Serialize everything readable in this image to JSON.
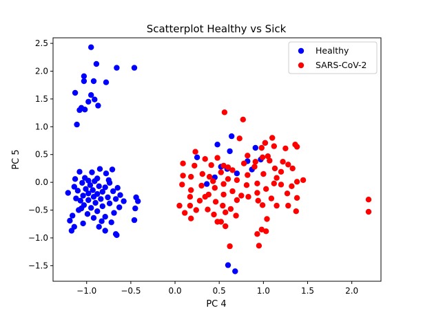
{
  "chart_data": {
    "type": "scatter",
    "title": "Scatterplot Healthy vs Sick",
    "xlabel": "PC 4",
    "ylabel": "PC 5",
    "xlim": [
      -1.38,
      2.33
    ],
    "ylim": [
      -1.78,
      2.6
    ],
    "xticks": [
      -1.0,
      -0.5,
      0.0,
      0.5,
      1.0,
      1.5,
      2.0
    ],
    "xtick_labels": [
      "−1.0",
      "−0.5",
      "0.0",
      "0.5",
      "1.0",
      "1.5",
      "2.0"
    ],
    "yticks": [
      -1.5,
      -1.0,
      -0.5,
      0.0,
      0.5,
      1.0,
      1.5,
      2.0,
      2.5
    ],
    "ytick_labels": [
      "−1.5",
      "−1.0",
      "−0.5",
      "0.0",
      "0.5",
      "1.0",
      "1.5",
      "2.0",
      "2.5"
    ],
    "legend_position": "top-right",
    "series": [
      {
        "name": "Healthy",
        "color": "#0000ff",
        "points": [
          [
            -0.95,
            2.43
          ],
          [
            -0.89,
            2.13
          ],
          [
            -0.66,
            2.06
          ],
          [
            -0.46,
            2.06
          ],
          [
            -1.03,
            1.91
          ],
          [
            -0.92,
            1.82
          ],
          [
            -1.03,
            1.82
          ],
          [
            -0.78,
            1.8
          ],
          [
            -1.13,
            1.61
          ],
          [
            -0.95,
            1.57
          ],
          [
            -0.91,
            1.49
          ],
          [
            -0.98,
            1.45
          ],
          [
            -0.87,
            1.38
          ],
          [
            -1.06,
            1.34
          ],
          [
            -1.08,
            1.3
          ],
          [
            -1.02,
            1.31
          ],
          [
            -1.11,
            1.04
          ],
          [
            -0.85,
            0.24
          ],
          [
            -0.71,
            0.23
          ],
          [
            -1.08,
            0.19
          ],
          [
            -0.94,
            0.18
          ],
          [
            -0.78,
            0.16
          ],
          [
            -1.13,
            0.06
          ],
          [
            -1.02,
            0.08
          ],
          [
            -0.88,
            0.07
          ],
          [
            -0.98,
            0.03
          ],
          [
            -0.75,
            0.04
          ],
          [
            -0.91,
            0.02
          ],
          [
            -0.74,
            -0.01
          ],
          [
            -1.05,
            -0.01
          ],
          [
            -0.96,
            -0.05
          ],
          [
            -1.14,
            -0.08
          ],
          [
            -0.86,
            -0.07
          ],
          [
            -0.79,
            -0.09
          ],
          [
            -0.65,
            -0.1
          ],
          [
            -1.01,
            -0.12
          ],
          [
            -0.93,
            -0.14
          ],
          [
            -1.1,
            -0.15
          ],
          [
            -0.7,
            -0.16
          ],
          [
            -0.82,
            -0.17
          ],
          [
            -1.21,
            -0.19
          ],
          [
            -0.98,
            -0.2
          ],
          [
            -0.88,
            -0.21
          ],
          [
            -0.62,
            -0.23
          ],
          [
            -1.04,
            -0.24
          ],
          [
            -0.92,
            -0.26
          ],
          [
            -0.76,
            -0.27
          ],
          [
            -0.44,
            -0.27
          ],
          [
            -1.12,
            -0.29
          ],
          [
            -0.84,
            -0.3
          ],
          [
            -0.67,
            -0.3
          ],
          [
            -0.98,
            -0.32
          ],
          [
            -1.07,
            -0.33
          ],
          [
            -0.58,
            -0.34
          ],
          [
            -0.42,
            -0.34
          ],
          [
            -0.9,
            -0.37
          ],
          [
            -0.74,
            -0.38
          ],
          [
            -1.03,
            -0.41
          ],
          [
            -0.82,
            -0.43
          ],
          [
            -0.63,
            -0.45
          ],
          [
            -0.95,
            -0.46
          ],
          [
            -1.06,
            -0.47
          ],
          [
            -0.45,
            -0.47
          ],
          [
            -1.09,
            -0.5
          ],
          [
            -0.88,
            -0.52
          ],
          [
            -0.69,
            -0.55
          ],
          [
            -0.99,
            -0.57
          ],
          [
            -1.16,
            -0.6
          ],
          [
            -0.79,
            -0.62
          ],
          [
            -0.92,
            -0.64
          ],
          [
            -0.46,
            -0.68
          ],
          [
            -1.19,
            -0.69
          ],
          [
            -0.83,
            -0.7
          ],
          [
            -0.72,
            -0.72
          ],
          [
            -1.04,
            -0.74
          ],
          [
            -0.86,
            -0.8
          ],
          [
            -1.14,
            -0.8
          ],
          [
            -0.79,
            -0.87
          ],
          [
            -1.17,
            -0.87
          ],
          [
            -0.67,
            -0.93
          ],
          [
            -0.66,
            -0.95
          ],
          [
            0.25,
            0.45
          ],
          [
            0.48,
            0.68
          ],
          [
            0.64,
            0.83
          ],
          [
            0.91,
            0.62
          ],
          [
            0.62,
            0.56
          ],
          [
            0.52,
            0.28
          ],
          [
            0.59,
            0.24
          ],
          [
            0.82,
            0.38
          ],
          [
            0.87,
            0.23
          ],
          [
            0.97,
            0.41
          ],
          [
            1.02,
            0.71
          ],
          [
            0.36,
            -0.03
          ],
          [
            0.45,
            0.09
          ],
          [
            0.7,
            0.16
          ],
          [
            0.6,
            -1.49
          ],
          [
            0.68,
            -1.6
          ]
        ]
      },
      {
        "name": "SARS-CoV-2",
        "color": "#ff0000",
        "points": [
          [
            0.56,
            1.26
          ],
          [
            0.77,
            1.13
          ],
          [
            0.73,
            0.79
          ],
          [
            1.1,
            0.8
          ],
          [
            0.98,
            0.62
          ],
          [
            1.02,
            0.71
          ],
          [
            1.12,
            0.65
          ],
          [
            1.25,
            0.61
          ],
          [
            1.36,
            0.68
          ],
          [
            1.38,
            0.64
          ],
          [
            0.23,
            0.55
          ],
          [
            0.82,
            0.48
          ],
          [
            0.99,
            0.45
          ],
          [
            1.05,
            0.47
          ],
          [
            0.34,
            0.42
          ],
          [
            0.48,
            0.44
          ],
          [
            0.78,
            0.34
          ],
          [
            0.91,
            0.37
          ],
          [
            1.07,
            0.39
          ],
          [
            1.22,
            0.37
          ],
          [
            0.55,
            0.3
          ],
          [
            0.9,
            0.28
          ],
          [
            1.28,
            0.32
          ],
          [
            0.09,
            0.34
          ],
          [
            0.22,
            0.3
          ],
          [
            0.41,
            0.31
          ],
          [
            0.6,
            0.27
          ],
          [
            1.13,
            0.25
          ],
          [
            1.33,
            0.25
          ],
          [
            0.65,
            0.22
          ],
          [
            0.31,
            0.15
          ],
          [
            0.52,
            0.18
          ],
          [
            1.0,
            0.15
          ],
          [
            1.2,
            0.19
          ],
          [
            0.18,
            0.1
          ],
          [
            0.82,
            0.13
          ],
          [
            1.15,
            0.08
          ],
          [
            0.39,
            0.1
          ],
          [
            0.09,
            0.12
          ],
          [
            0.6,
            0.06
          ],
          [
            0.7,
            0.04
          ],
          [
            1.45,
            0.04
          ],
          [
            1.38,
            0.01
          ],
          [
            0.43,
            0.02
          ],
          [
            0.08,
            -0.04
          ],
          [
            0.55,
            -0.03
          ],
          [
            0.93,
            -0.02
          ],
          [
            1.12,
            -0.02
          ],
          [
            1.2,
            -0.04
          ],
          [
            0.3,
            -0.06
          ],
          [
            0.81,
            -0.05
          ],
          [
            1.32,
            -0.07
          ],
          [
            0.45,
            -0.1
          ],
          [
            1.03,
            -0.12
          ],
          [
            0.18,
            -0.14
          ],
          [
            0.65,
            -0.16
          ],
          [
            0.93,
            -0.19
          ],
          [
            1.27,
            -0.2
          ],
          [
            0.38,
            -0.22
          ],
          [
            0.55,
            -0.22
          ],
          [
            0.75,
            -0.24
          ],
          [
            0.17,
            -0.26
          ],
          [
            0.34,
            -0.26
          ],
          [
            0.83,
            -0.26
          ],
          [
            1.09,
            -0.29
          ],
          [
            1.38,
            -0.28
          ],
          [
            0.28,
            -0.33
          ],
          [
            0.7,
            -0.32
          ],
          [
            0.94,
            -0.33
          ],
          [
            0.46,
            -0.35
          ],
          [
            0.05,
            -0.42
          ],
          [
            0.17,
            -0.42
          ],
          [
            0.54,
            -0.42
          ],
          [
            0.99,
            -0.41
          ],
          [
            1.15,
            -0.42
          ],
          [
            1.28,
            -0.42
          ],
          [
            0.63,
            -0.48
          ],
          [
            0.37,
            -0.49
          ],
          [
            0.24,
            -0.5
          ],
          [
            0.57,
            -0.54
          ],
          [
            1.37,
            -0.52
          ],
          [
            0.11,
            -0.55
          ],
          [
            0.44,
            -0.58
          ],
          [
            0.69,
            -0.6
          ],
          [
            0.18,
            -0.65
          ],
          [
            0.48,
            -0.71
          ],
          [
            0.52,
            -0.71
          ],
          [
            1.04,
            -0.66
          ],
          [
            0.57,
            -0.79
          ],
          [
            1.03,
            -0.88
          ],
          [
            0.98,
            -0.85
          ],
          [
            0.93,
            -0.93
          ],
          [
            0.62,
            -1.15
          ],
          [
            0.95,
            -1.14
          ],
          [
            2.19,
            -0.31
          ],
          [
            2.19,
            -0.53
          ]
        ]
      }
    ]
  }
}
